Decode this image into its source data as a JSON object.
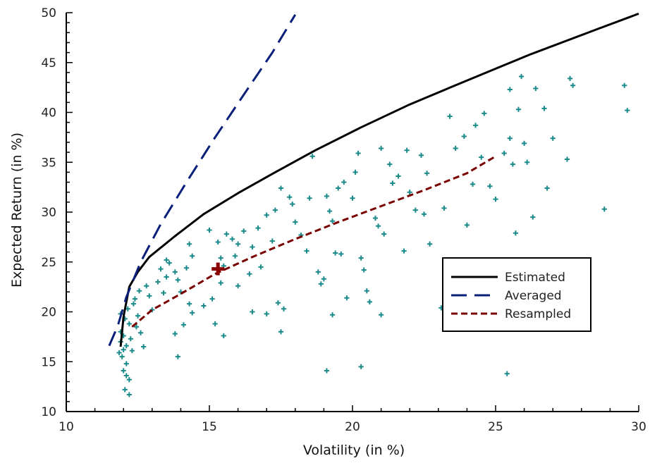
{
  "chart_data": {
    "type": "scatter",
    "xlabel": "Volatility (in %)",
    "ylabel": "Expected Return (in %)",
    "xlim": [
      10,
      30
    ],
    "ylim": [
      10,
      50
    ],
    "xticks": [
      10,
      15,
      20,
      25,
      30
    ],
    "yticks": [
      10,
      15,
      20,
      25,
      30,
      35,
      40,
      45,
      50
    ],
    "legend_position": "right",
    "series": [
      {
        "name": "Estimated",
        "kind": "line",
        "style": "solid",
        "color": "#000000",
        "points": [
          [
            11.9,
            16.5
          ],
          [
            12.0,
            19.5
          ],
          [
            12.2,
            22.5
          ],
          [
            12.5,
            24.0
          ],
          [
            12.9,
            25.5
          ],
          [
            13.8,
            27.6
          ],
          [
            14.8,
            29.8
          ],
          [
            16.0,
            31.9
          ],
          [
            17.3,
            34.0
          ],
          [
            18.7,
            36.2
          ],
          [
            20.3,
            38.5
          ],
          [
            22.0,
            40.8
          ],
          [
            24.0,
            43.2
          ],
          [
            26.2,
            45.8
          ],
          [
            28.5,
            48.3
          ],
          [
            30.0,
            49.9
          ]
        ]
      },
      {
        "name": "Averaged",
        "kind": "line",
        "style": "dashed",
        "color": "#0a1f7a",
        "points": [
          [
            11.5,
            16.6
          ],
          [
            11.8,
            18.6
          ],
          [
            12.1,
            21.5
          ],
          [
            12.6,
            25.0
          ],
          [
            13.3,
            28.8
          ],
          [
            14.2,
            33.0
          ],
          [
            15.2,
            37.5
          ],
          [
            16.3,
            42.2
          ],
          [
            17.2,
            46.0
          ],
          [
            18.0,
            49.8
          ]
        ]
      },
      {
        "name": "Resampled",
        "kind": "line",
        "style": "short-dashed",
        "color": "#7a0000",
        "points": [
          [
            12.3,
            18.5
          ],
          [
            13.0,
            20.2
          ],
          [
            14.0,
            21.8
          ],
          [
            15.2,
            23.8
          ],
          [
            16.5,
            25.5
          ],
          [
            18.0,
            27.3
          ],
          [
            19.5,
            29.0
          ],
          [
            21.0,
            30.6
          ],
          [
            22.5,
            32.2
          ],
          [
            24.0,
            33.9
          ],
          [
            25.0,
            35.6
          ]
        ]
      },
      {
        "name": "",
        "kind": "scatter",
        "color": "#1a8a8a",
        "points": [
          [
            11.9,
            17.0
          ],
          [
            12.0,
            16.2
          ],
          [
            11.95,
            15.5
          ],
          [
            12.1,
            14.8
          ],
          [
            11.9,
            18.0
          ],
          [
            12.05,
            19.3
          ],
          [
            12.2,
            18.8
          ],
          [
            12.0,
            17.6
          ],
          [
            12.1,
            16.6
          ],
          [
            11.85,
            15.9
          ],
          [
            12.25,
            17.3
          ],
          [
            12.3,
            16.1
          ],
          [
            12.0,
            14.1
          ],
          [
            12.1,
            13.6
          ],
          [
            12.2,
            13.2
          ],
          [
            12.05,
            12.2
          ],
          [
            12.2,
            11.7
          ],
          [
            11.9,
            19.8
          ],
          [
            12.15,
            20.3
          ],
          [
            12.35,
            20.8
          ],
          [
            12.4,
            21.3
          ],
          [
            12.5,
            19.6
          ],
          [
            12.45,
            18.5
          ],
          [
            12.6,
            17.9
          ],
          [
            12.7,
            16.5
          ],
          [
            12.55,
            22.1
          ],
          [
            12.8,
            22.6
          ],
          [
            12.9,
            21.6
          ],
          [
            13.0,
            20.2
          ],
          [
            13.2,
            23.0
          ],
          [
            13.4,
            21.9
          ],
          [
            13.5,
            23.5
          ],
          [
            13.3,
            24.3
          ],
          [
            13.6,
            24.9
          ],
          [
            13.5,
            25.2
          ],
          [
            13.8,
            24.0
          ],
          [
            13.9,
            23.2
          ],
          [
            14.0,
            22.0
          ],
          [
            14.2,
            24.4
          ],
          [
            14.3,
            26.8
          ],
          [
            14.4,
            25.6
          ],
          [
            14.3,
            20.8
          ],
          [
            14.4,
            19.9
          ],
          [
            14.1,
            18.7
          ],
          [
            13.8,
            17.8
          ],
          [
            13.9,
            15.5
          ],
          [
            15.0,
            28.2
          ],
          [
            15.3,
            27.0
          ],
          [
            15.4,
            25.4
          ],
          [
            15.5,
            24.6
          ],
          [
            15.6,
            27.8
          ],
          [
            15.8,
            27.3
          ],
          [
            15.9,
            25.6
          ],
          [
            16.0,
            26.8
          ],
          [
            16.2,
            28.1
          ],
          [
            16.5,
            26.5
          ],
          [
            16.7,
            28.4
          ],
          [
            16.8,
            24.5
          ],
          [
            17.0,
            29.7
          ],
          [
            17.3,
            30.2
          ],
          [
            17.5,
            32.4
          ],
          [
            17.8,
            31.5
          ],
          [
            17.9,
            30.8
          ],
          [
            18.0,
            29.0
          ],
          [
            17.2,
            27.1
          ],
          [
            16.4,
            23.8
          ],
          [
            16.0,
            22.6
          ],
          [
            15.4,
            22.9
          ],
          [
            15.1,
            21.3
          ],
          [
            14.8,
            20.6
          ],
          [
            15.2,
            18.8
          ],
          [
            15.5,
            17.6
          ],
          [
            16.5,
            20.0
          ],
          [
            17.0,
            19.8
          ],
          [
            17.4,
            20.9
          ],
          [
            17.5,
            18.0
          ],
          [
            17.6,
            20.3
          ],
          [
            18.2,
            27.7
          ],
          [
            18.4,
            26.1
          ],
          [
            18.5,
            31.4
          ],
          [
            18.6,
            35.6
          ],
          [
            18.8,
            24.0
          ],
          [
            18.9,
            22.8
          ],
          [
            19.0,
            23.3
          ],
          [
            19.1,
            31.6
          ],
          [
            19.2,
            30.1
          ],
          [
            19.3,
            29.1
          ],
          [
            19.5,
            32.4
          ],
          [
            19.6,
            25.8
          ],
          [
            19.7,
            33.0
          ],
          [
            19.8,
            21.4
          ],
          [
            19.4,
            25.9
          ],
          [
            19.3,
            19.7
          ],
          [
            19.1,
            14.1
          ],
          [
            20.0,
            31.4
          ],
          [
            20.1,
            34.0
          ],
          [
            20.2,
            35.9
          ],
          [
            20.3,
            25.4
          ],
          [
            20.4,
            24.2
          ],
          [
            20.5,
            22.1
          ],
          [
            20.6,
            21.0
          ],
          [
            20.8,
            29.4
          ],
          [
            20.9,
            28.6
          ],
          [
            21.0,
            36.4
          ],
          [
            21.1,
            27.8
          ],
          [
            21.3,
            34.8
          ],
          [
            21.4,
            32.9
          ],
          [
            21.6,
            33.6
          ],
          [
            21.8,
            26.1
          ],
          [
            21.9,
            36.2
          ],
          [
            22.0,
            32.0
          ],
          [
            22.2,
            30.2
          ],
          [
            22.4,
            35.7
          ],
          [
            22.5,
            29.8
          ],
          [
            22.6,
            33.9
          ],
          [
            22.7,
            26.8
          ],
          [
            21.0,
            19.7
          ],
          [
            20.3,
            14.5
          ],
          [
            23.1,
            20.4
          ],
          [
            23.2,
            30.4
          ],
          [
            23.4,
            39.6
          ],
          [
            23.6,
            36.4
          ],
          [
            23.9,
            37.6
          ],
          [
            24.0,
            28.7
          ],
          [
            24.2,
            32.8
          ],
          [
            24.3,
            38.7
          ],
          [
            24.5,
            35.5
          ],
          [
            24.6,
            39.9
          ],
          [
            24.8,
            32.6
          ],
          [
            25.0,
            31.3
          ],
          [
            25.3,
            35.9
          ],
          [
            25.5,
            37.4
          ],
          [
            25.6,
            34.8
          ],
          [
            25.8,
            40.3
          ],
          [
            26.0,
            36.9
          ],
          [
            26.1,
            35.0
          ],
          [
            25.7,
            27.9
          ],
          [
            26.3,
            29.5
          ],
          [
            25.5,
            42.3
          ],
          [
            25.9,
            43.6
          ],
          [
            26.4,
            42.4
          ],
          [
            26.8,
            32.4
          ],
          [
            27.0,
            37.4
          ],
          [
            26.7,
            40.4
          ],
          [
            27.5,
            35.3
          ],
          [
            27.6,
            43.4
          ],
          [
            27.7,
            42.7
          ],
          [
            28.8,
            30.3
          ],
          [
            29.5,
            42.7
          ],
          [
            29.6,
            40.2
          ],
          [
            25.4,
            13.8
          ]
        ]
      }
    ],
    "highlight": {
      "x": 15.3,
      "y": 24.3,
      "color": "#8a0000"
    }
  }
}
